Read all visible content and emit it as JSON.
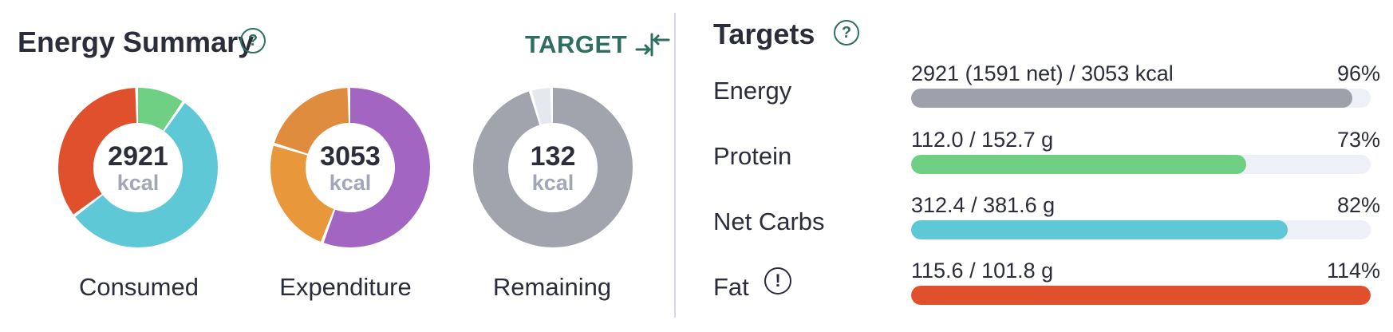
{
  "energy_summary": {
    "title": "Energy Summary",
    "help_icon": "question-circle-icon",
    "target_button": {
      "label": "TARGET",
      "icon": "arrows-in-icon"
    },
    "donuts": [
      {
        "id": "consumed",
        "value": "2921",
        "unit": "kcal",
        "caption": "Consumed",
        "segments": [
          {
            "share": 0.1,
            "color": "#6fcf82"
          },
          {
            "share": 0.55,
            "color": "#5fc8d6"
          },
          {
            "share": 0.35,
            "color": "#e0502c"
          }
        ]
      },
      {
        "id": "expenditure",
        "value": "3053",
        "unit": "kcal",
        "caption": "Expenditure",
        "segments": [
          {
            "share": 0.56,
            "color": "#a365c2"
          },
          {
            "share": 0.24,
            "color": "#e8973a"
          },
          {
            "share": 0.2,
            "color": "#e08c3e"
          }
        ]
      },
      {
        "id": "remaining",
        "value": "132",
        "unit": "kcal",
        "caption": "Remaining",
        "segments": [
          {
            "share": 0.957,
            "color": "#a1a3ad"
          },
          {
            "share": 0.043,
            "color": "#e6e8ef"
          }
        ]
      }
    ]
  },
  "targets": {
    "title": "Targets",
    "help_icon": "question-circle-icon",
    "rows": [
      {
        "label": "Energy",
        "value": "2921 (1591 net) / 3053 kcal",
        "percent_label": "96%",
        "fill": 0.96,
        "color": "#9ea0ab"
      },
      {
        "label": "Protein",
        "value": "112.0 / 152.7 g",
        "percent_label": "73%",
        "fill": 0.73,
        "color": "#6fcf82"
      },
      {
        "label": "Net Carbs",
        "value": "312.4 / 381.6 g",
        "percent_label": "82%",
        "fill": 0.82,
        "color": "#5fc8d6"
      },
      {
        "label": "Fat",
        "value": "115.6 / 101.8 g",
        "percent_label": "114%",
        "fill": 1.0,
        "color": "#e0502c",
        "warning_icon": "exclamation-circle-icon"
      }
    ]
  }
}
